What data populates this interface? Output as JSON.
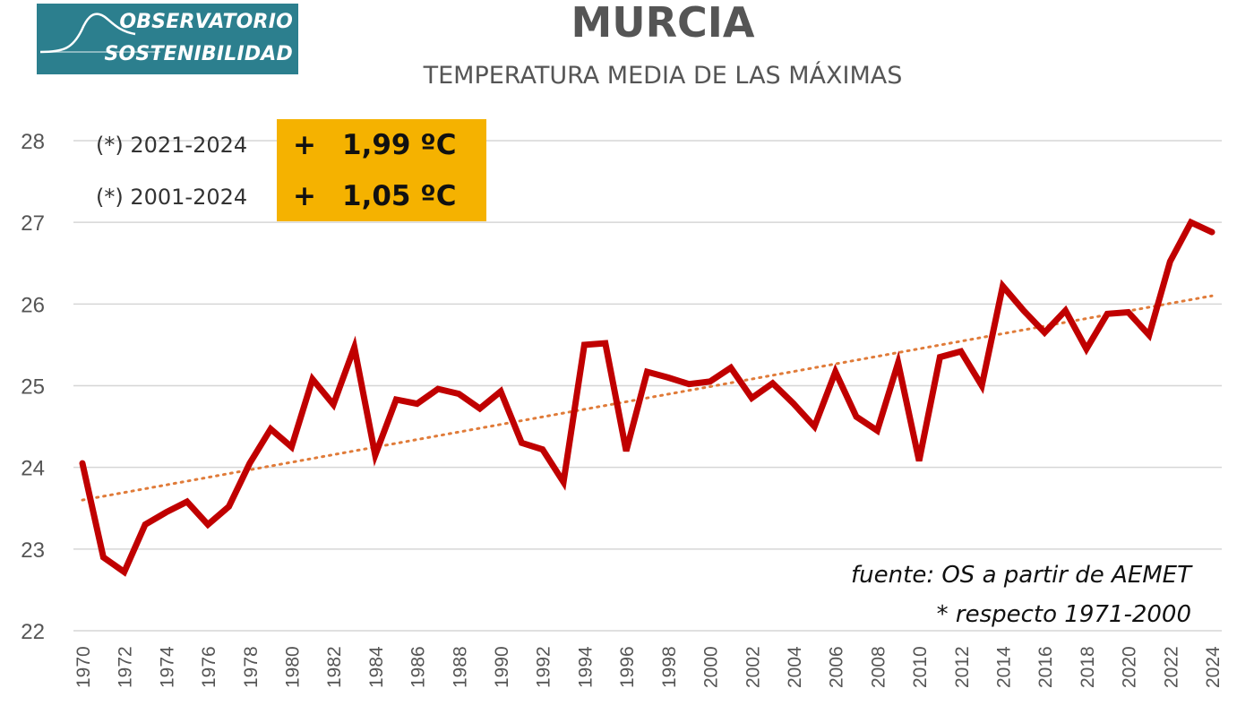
{
  "logo": {
    "line1": "OBSERVATORIO",
    "line2": "SOSTENIBILIDAD",
    "bg_color": "#2c7f8e"
  },
  "title": "MURCIA",
  "subtitle": "TEMPERATURA MEDIA DE LAS MÁXIMAS",
  "highlights": [
    {
      "period": "(*) 2021-2024",
      "sign": "+",
      "value": "1,99 ºC"
    },
    {
      "period": "(*) 2001-2024",
      "sign": "+",
      "value": "1,05 ºC"
    }
  ],
  "highlight_color": "#f5b200",
  "source": {
    "line1": "fuente: OS a partir de AEMET",
    "line2": "* respecto 1971-2000"
  },
  "chart_data": {
    "type": "line",
    "title": "MURCIA",
    "subtitle": "TEMPERATURA MEDIA DE LAS MÁXIMAS",
    "xlabel": "",
    "ylabel": "",
    "ylim": [
      22,
      28
    ],
    "yticks": [
      22,
      23,
      24,
      25,
      26,
      27,
      28
    ],
    "xticks": [
      1970,
      1972,
      1974,
      1976,
      1978,
      1980,
      1982,
      1984,
      1986,
      1988,
      1990,
      1992,
      1994,
      1996,
      1998,
      2000,
      2002,
      2004,
      2006,
      2008,
      2010,
      2012,
      2014,
      2016,
      2018,
      2020,
      2022,
      2024
    ],
    "grid": true,
    "legend": "none",
    "x": [
      1970,
      1971,
      1972,
      1973,
      1974,
      1975,
      1976,
      1977,
      1978,
      1979,
      1980,
      1981,
      1982,
      1983,
      1984,
      1985,
      1986,
      1987,
      1988,
      1989,
      1990,
      1991,
      1992,
      1993,
      1994,
      1995,
      1996,
      1997,
      1998,
      1999,
      2000,
      2001,
      2002,
      2003,
      2004,
      2005,
      2006,
      2007,
      2008,
      2009,
      2010,
      2011,
      2012,
      2013,
      2014,
      2015,
      2016,
      2017,
      2018,
      2019,
      2020,
      2021,
      2022,
      2023,
      2024
    ],
    "series": [
      {
        "color": "#c00000",
        "values": [
          24.05,
          22.9,
          22.72,
          23.3,
          23.45,
          23.58,
          23.3,
          23.52,
          24.05,
          24.47,
          24.25,
          25.08,
          24.77,
          25.47,
          24.15,
          24.83,
          24.78,
          24.96,
          24.9,
          24.72,
          24.93,
          24.3,
          24.22,
          23.82,
          25.5,
          25.52,
          24.2,
          25.17,
          25.1,
          25.02,
          25.05,
          25.22,
          24.85,
          25.03,
          24.78,
          24.5,
          25.17,
          24.62,
          24.45,
          25.28,
          24.08,
          25.35,
          25.42,
          25.0,
          26.22,
          25.92,
          25.65,
          25.92,
          25.45,
          25.88,
          25.9,
          25.62,
          26.52,
          27.0,
          26.88
        ]
      }
    ],
    "trend": {
      "color": "#e07b39",
      "start": [
        1970,
        23.6
      ],
      "end": [
        2024,
        26.1
      ]
    }
  }
}
